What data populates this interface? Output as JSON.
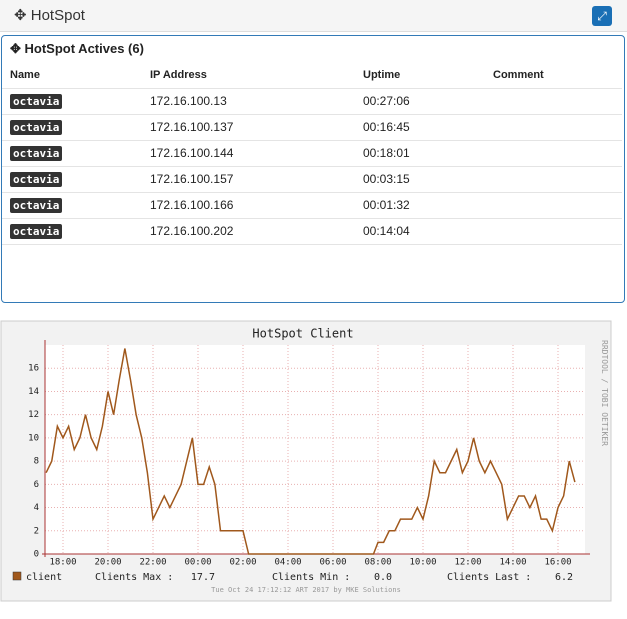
{
  "header": {
    "title": "HotSpot"
  },
  "panel": {
    "title": "HotSpot Actives (6)"
  },
  "table": {
    "columns": [
      "Name",
      "IP Address",
      "Uptime",
      "Comment"
    ],
    "rows": [
      [
        "octavia",
        "172.16.100.13",
        "00:27:06",
        ""
      ],
      [
        "octavia",
        "172.16.100.137",
        "00:16:45",
        ""
      ],
      [
        "octavia",
        "172.16.100.144",
        "00:18:01",
        ""
      ],
      [
        "octavia",
        "172.16.100.157",
        "00:03:15",
        ""
      ],
      [
        "octavia",
        "172.16.100.166",
        "00:01:32",
        ""
      ],
      [
        "octavia",
        "172.16.100.202",
        "00:14:04",
        ""
      ]
    ]
  },
  "chart_data": {
    "type": "line",
    "title": "HotSpot Client",
    "side_label": "RRDTOOL / TOBI OETIKER",
    "footer": "Tue Oct 24 17:12:12 ART 2017 by MKE Solutions",
    "x": [
      17.25,
      17.5,
      17.75,
      18,
      18.25,
      18.5,
      18.75,
      19,
      19.25,
      19.5,
      19.75,
      20,
      20.25,
      20.5,
      20.75,
      21,
      21.25,
      21.5,
      21.75,
      22,
      22.25,
      22.5,
      22.75,
      23,
      23.25,
      23.5,
      23.75,
      24,
      24.25,
      24.5,
      24.75,
      25,
      25.25,
      25.5,
      25.75,
      26,
      26.25,
      27,
      28,
      29,
      30,
      31,
      31.8,
      32,
      32.25,
      32.5,
      32.75,
      33,
      33.25,
      33.5,
      33.75,
      34,
      34.25,
      34.5,
      34.75,
      35,
      35.25,
      35.5,
      35.75,
      36,
      36.25,
      36.5,
      36.75,
      37,
      37.25,
      37.5,
      37.75,
      38,
      38.25,
      38.5,
      38.75,
      39,
      39.25,
      39.5,
      39.75,
      40,
      40.25,
      40.5,
      40.75
    ],
    "series": [
      {
        "name": "client",
        "color": "#a0581c",
        "values": [
          7,
          8,
          11,
          10,
          11,
          9,
          10,
          12,
          10,
          9,
          11,
          14,
          12,
          15,
          17.7,
          15,
          12,
          10,
          7,
          3,
          4,
          5,
          4,
          5,
          6,
          8,
          10,
          6,
          6,
          7.5,
          6,
          2,
          2,
          2,
          2,
          2,
          0,
          0,
          0,
          0,
          0,
          0,
          0,
          1,
          1,
          2,
          2,
          3,
          3,
          3,
          4,
          3,
          5,
          8,
          7,
          7,
          8,
          9,
          7,
          8,
          10,
          8,
          7,
          8,
          7,
          6,
          3,
          4,
          5,
          5,
          4,
          5,
          3,
          3,
          2,
          4,
          5,
          8,
          6.2
        ]
      }
    ],
    "stats": [
      {
        "label": "Clients Max :",
        "value": "17.7"
      },
      {
        "label": "Clients Min :",
        "value": "0.0"
      },
      {
        "label": "Clients Last :",
        "value": "6.2"
      }
    ],
    "xlim": [
      17.2,
      41.2
    ],
    "xticks": [
      {
        "value": 18,
        "label": "18:00"
      },
      {
        "value": 20,
        "label": "20:00"
      },
      {
        "value": 22,
        "label": "22:00"
      },
      {
        "value": 24,
        "label": "00:00"
      },
      {
        "value": 26,
        "label": "02:00"
      },
      {
        "value": 28,
        "label": "04:00"
      },
      {
        "value": 30,
        "label": "06:00"
      },
      {
        "value": 32,
        "label": "08:00"
      },
      {
        "value": 34,
        "label": "10:00"
      },
      {
        "value": 36,
        "label": "12:00"
      },
      {
        "value": 38,
        "label": "14:00"
      },
      {
        "value": 40,
        "label": "16:00"
      }
    ],
    "ylim": [
      0,
      18
    ],
    "yticks": [
      0,
      2,
      4,
      6,
      8,
      10,
      12,
      14,
      16
    ],
    "grid": true
  }
}
